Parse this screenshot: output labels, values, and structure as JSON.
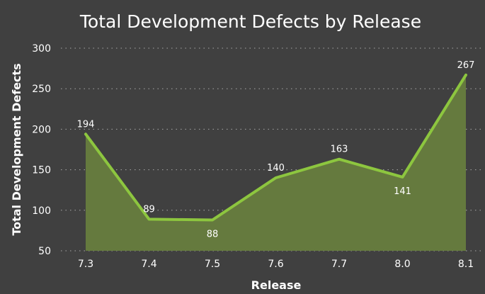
{
  "chart_data": {
    "type": "area",
    "title": "Total Development Defects by Release",
    "xlabel": "Release",
    "ylabel": "Total Development Defects",
    "categories": [
      "7.3",
      "7.4",
      "7.5",
      "7.6",
      "7.7",
      "8.0",
      "8.1"
    ],
    "series": [
      {
        "values": [
          194,
          89,
          88,
          140,
          163,
          141,
          267
        ]
      }
    ],
    "data_labels": [
      "194",
      "89",
      "88",
      "140",
      "163",
      "141",
      "267"
    ],
    "label_placement": [
      "above",
      "above",
      "below",
      "above",
      "above",
      "below",
      "above"
    ],
    "ylim": [
      50,
      300
    ],
    "yticks": [
      50,
      100,
      150,
      200,
      250,
      300
    ],
    "ytick_labels": [
      "50",
      "100",
      "150",
      "200",
      "250",
      "300"
    ],
    "grid": true,
    "legend": "none",
    "colors": {
      "background": "#404040",
      "line": "#8dc63f",
      "area": "#657a3e",
      "grid": "#a9a9a9",
      "text": "#ffffff"
    }
  }
}
